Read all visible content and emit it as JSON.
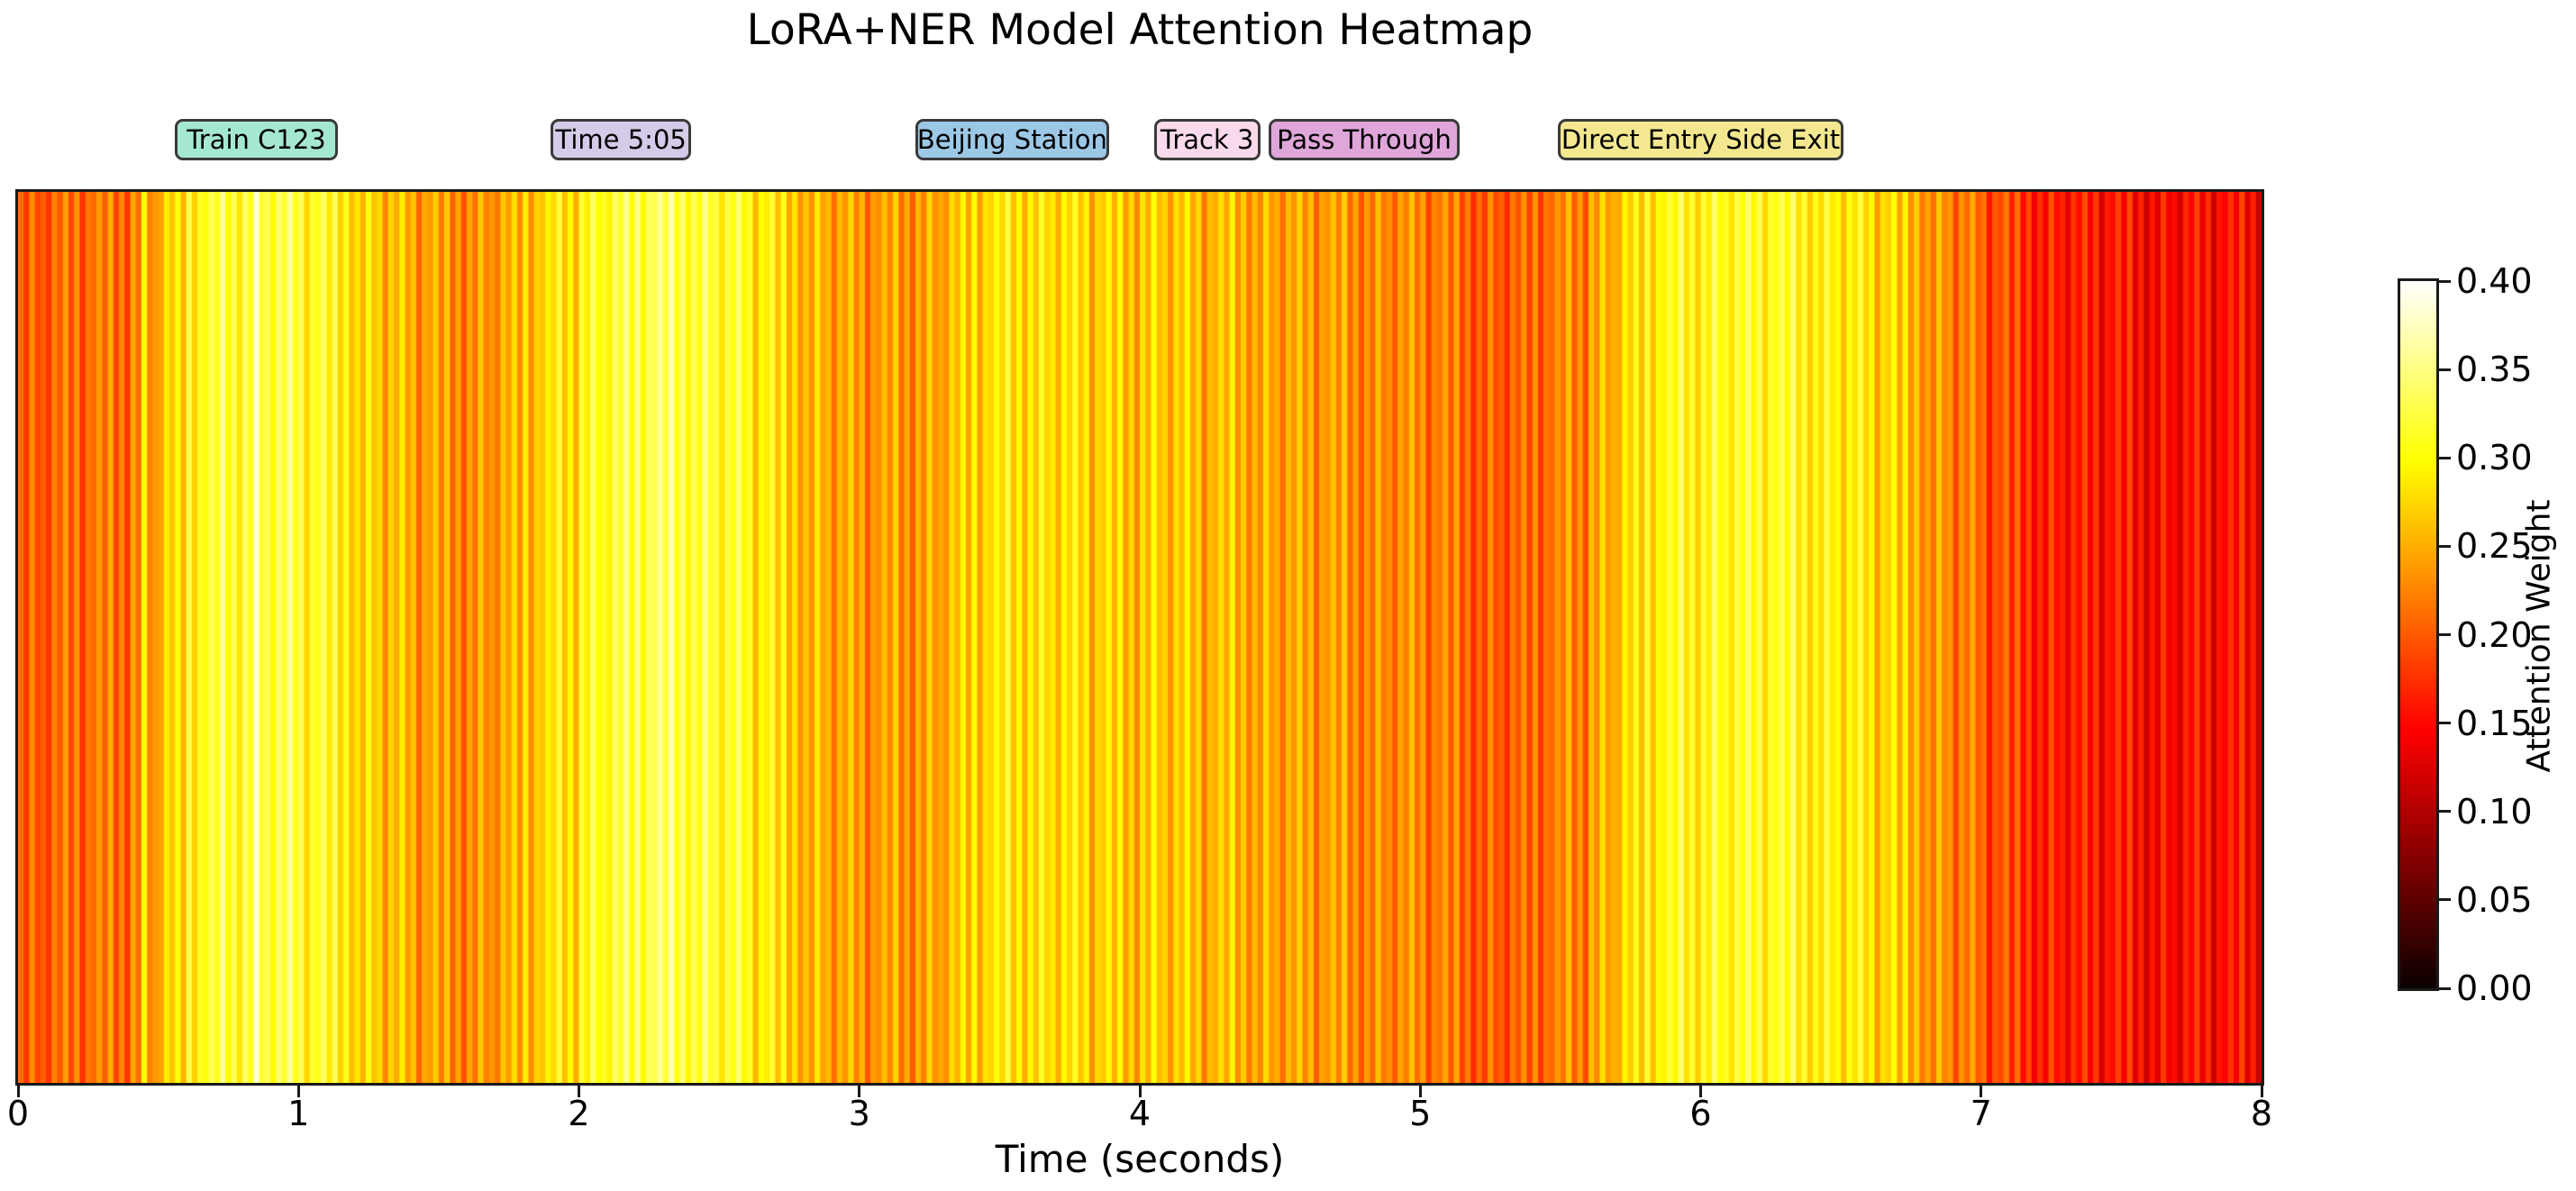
{
  "chart_data": {
    "type": "heatmap",
    "title": "LoRA+NER Model Attention Heatmap",
    "xlabel": "Time (seconds)",
    "colorbar_label": "Attention Weight",
    "colormap": "hot",
    "vmin": 0.0,
    "vmax": 0.4,
    "x_range": [
      0,
      8
    ],
    "x_ticks": [
      0,
      1,
      2,
      3,
      4,
      5,
      6,
      7,
      8
    ],
    "colorbar_ticks": [
      0.0,
      0.05,
      0.1,
      0.15,
      0.2,
      0.25,
      0.3,
      0.35,
      0.4
    ],
    "grid": false,
    "legend_position": "none",
    "n_samples": 400,
    "values": [
      0.21,
      0.178,
      0.23,
      0.188,
      0.202,
      0.177,
      0.223,
      0.199,
      0.239,
      0.189,
      0.234,
      0.176,
      0.218,
      0.208,
      0.238,
      0.202,
      0.25,
      0.188,
      0.226,
      0.176,
      0.245,
      0.213,
      0.3,
      0.223,
      0.237,
      0.242,
      0.288,
      0.264,
      0.304,
      0.254,
      0.329,
      0.271,
      0.313,
      0.303,
      0.333,
      0.31,
      0.358,
      0.296,
      0.334,
      0.284,
      0.34,
      0.308,
      0.385,
      0.318,
      0.332,
      0.297,
      0.343,
      0.319,
      0.359,
      0.309,
      0.334,
      0.276,
      0.318,
      0.308,
      0.338,
      0.285,
      0.333,
      0.271,
      0.309,
      0.259,
      0.285,
      0.253,
      0.305,
      0.263,
      0.277,
      0.227,
      0.273,
      0.249,
      0.289,
      0.239,
      0.264,
      0.206,
      0.248,
      0.238,
      0.268,
      0.22,
      0.268,
      0.206,
      0.244,
      0.194,
      0.245,
      0.213,
      0.265,
      0.223,
      0.237,
      0.217,
      0.263,
      0.239,
      0.279,
      0.229,
      0.289,
      0.231,
      0.273,
      0.263,
      0.293,
      0.275,
      0.323,
      0.261,
      0.299,
      0.249,
      0.32,
      0.288,
      0.34,
      0.298,
      0.312,
      0.292,
      0.338,
      0.314,
      0.354,
      0.304,
      0.354,
      0.296,
      0.338,
      0.328,
      0.358,
      0.32,
      0.368,
      0.306,
      0.344,
      0.294,
      0.335,
      0.303,
      0.355,
      0.313,
      0.327,
      0.282,
      0.328,
      0.304,
      0.344,
      0.294,
      0.314,
      0.256,
      0.298,
      0.288,
      0.318,
      0.26,
      0.308,
      0.246,
      0.284,
      0.234,
      0.265,
      0.233,
      0.285,
      0.243,
      0.257,
      0.212,
      0.258,
      0.234,
      0.274,
      0.224,
      0.256,
      0.198,
      0.24,
      0.23,
      0.26,
      0.225,
      0.273,
      0.211,
      0.249,
      0.199,
      0.255,
      0.223,
      0.275,
      0.233,
      0.247,
      0.232,
      0.278,
      0.254,
      0.294,
      0.244,
      0.299,
      0.241,
      0.283,
      0.273,
      0.303,
      0.275,
      0.323,
      0.261,
      0.299,
      0.249,
      0.295,
      0.263,
      0.315,
      0.273,
      0.287,
      0.25,
      0.296,
      0.272,
      0.312,
      0.262,
      0.292,
      0.234,
      0.276,
      0.266,
      0.296,
      0.252,
      0.3,
      0.238,
      0.276,
      0.226,
      0.282,
      0.25,
      0.302,
      0.26,
      0.274,
      0.234,
      0.28,
      0.256,
      0.296,
      0.246,
      0.276,
      0.218,
      0.26,
      0.25,
      0.28,
      0.245,
      0.293,
      0.231,
      0.269,
      0.219,
      0.258,
      0.226,
      0.278,
      0.236,
      0.25,
      0.212,
      0.258,
      0.234,
      0.274,
      0.224,
      0.259,
      0.201,
      0.243,
      0.233,
      0.263,
      0.222,
      0.27,
      0.208,
      0.246,
      0.196,
      0.24,
      0.208,
      0.26,
      0.218,
      0.232,
      0.2,
      0.246,
      0.222,
      0.262,
      0.212,
      0.242,
      0.184,
      0.226,
      0.216,
      0.246,
      0.198,
      0.246,
      0.184,
      0.222,
      0.172,
      0.212,
      0.18,
      0.232,
      0.19,
      0.204,
      0.172,
      0.218,
      0.194,
      0.234,
      0.184,
      0.234,
      0.176,
      0.218,
      0.208,
      0.238,
      0.215,
      0.263,
      0.201,
      0.239,
      0.189,
      0.26,
      0.228,
      0.28,
      0.238,
      0.252,
      0.247,
      0.293,
      0.269,
      0.309,
      0.259,
      0.319,
      0.261,
      0.303,
      0.293,
      0.323,
      0.295,
      0.343,
      0.281,
      0.319,
      0.269,
      0.32,
      0.288,
      0.34,
      0.298,
      0.312,
      0.282,
      0.328,
      0.304,
      0.344,
      0.294,
      0.332,
      0.274,
      0.316,
      0.306,
      0.336,
      0.295,
      0.343,
      0.281,
      0.319,
      0.269,
      0.308,
      0.276,
      0.328,
      0.286,
      0.3,
      0.26,
      0.306,
      0.282,
      0.322,
      0.272,
      0.296,
      0.238,
      0.28,
      0.27,
      0.3,
      0.245,
      0.293,
      0.231,
      0.269,
      0.219,
      0.245,
      0.213,
      0.265,
      0.223,
      0.237,
      0.187,
      0.233,
      0.209,
      0.249,
      0.199,
      0.214,
      0.156,
      0.198,
      0.188,
      0.218,
      0.165,
      0.213,
      0.151,
      0.189,
      0.139,
      0.175,
      0.143,
      0.195,
      0.153,
      0.167,
      0.13,
      0.176,
      0.152,
      0.192,
      0.142,
      0.179,
      0.121,
      0.163,
      0.153,
      0.183,
      0.142,
      0.19,
      0.128,
      0.166,
      0.116,
      0.16,
      0.128,
      0.18,
      0.138,
      0.152,
      0.122,
      0.168,
      0.144,
      0.184,
      0.134,
      0.174,
      0.116,
      0.158,
      0.148,
      0.178,
      0.14,
      0.188,
      0.126,
      0.164,
      0.114
    ]
  },
  "annotations": [
    {
      "label": "Train C123",
      "bg": "#a5e8d0",
      "t0": 0.56,
      "t1": 1.14
    },
    {
      "label": "Time 5:05",
      "bg": "#d3cbe7",
      "t0": 1.9,
      "t1": 2.4
    },
    {
      "label": "Beijing Station",
      "bg": "#9cc8e6",
      "t0": 3.2,
      "t1": 3.89
    },
    {
      "label": "Track 3",
      "bg": "#f9d9ec",
      "t0": 4.05,
      "t1": 4.43
    },
    {
      "label": "Pass Through",
      "bg": "#dfa6d9",
      "t0": 4.46,
      "t1": 5.14
    },
    {
      "label": "Direct Entry Side Exit",
      "bg": "#f3e88f",
      "t0": 5.49,
      "t1": 6.51
    }
  ],
  "colors": {
    "background": "#ffffff",
    "axis": "#1a1a1a",
    "annotation_border": "#3a3a3a",
    "text": "#000000"
  }
}
